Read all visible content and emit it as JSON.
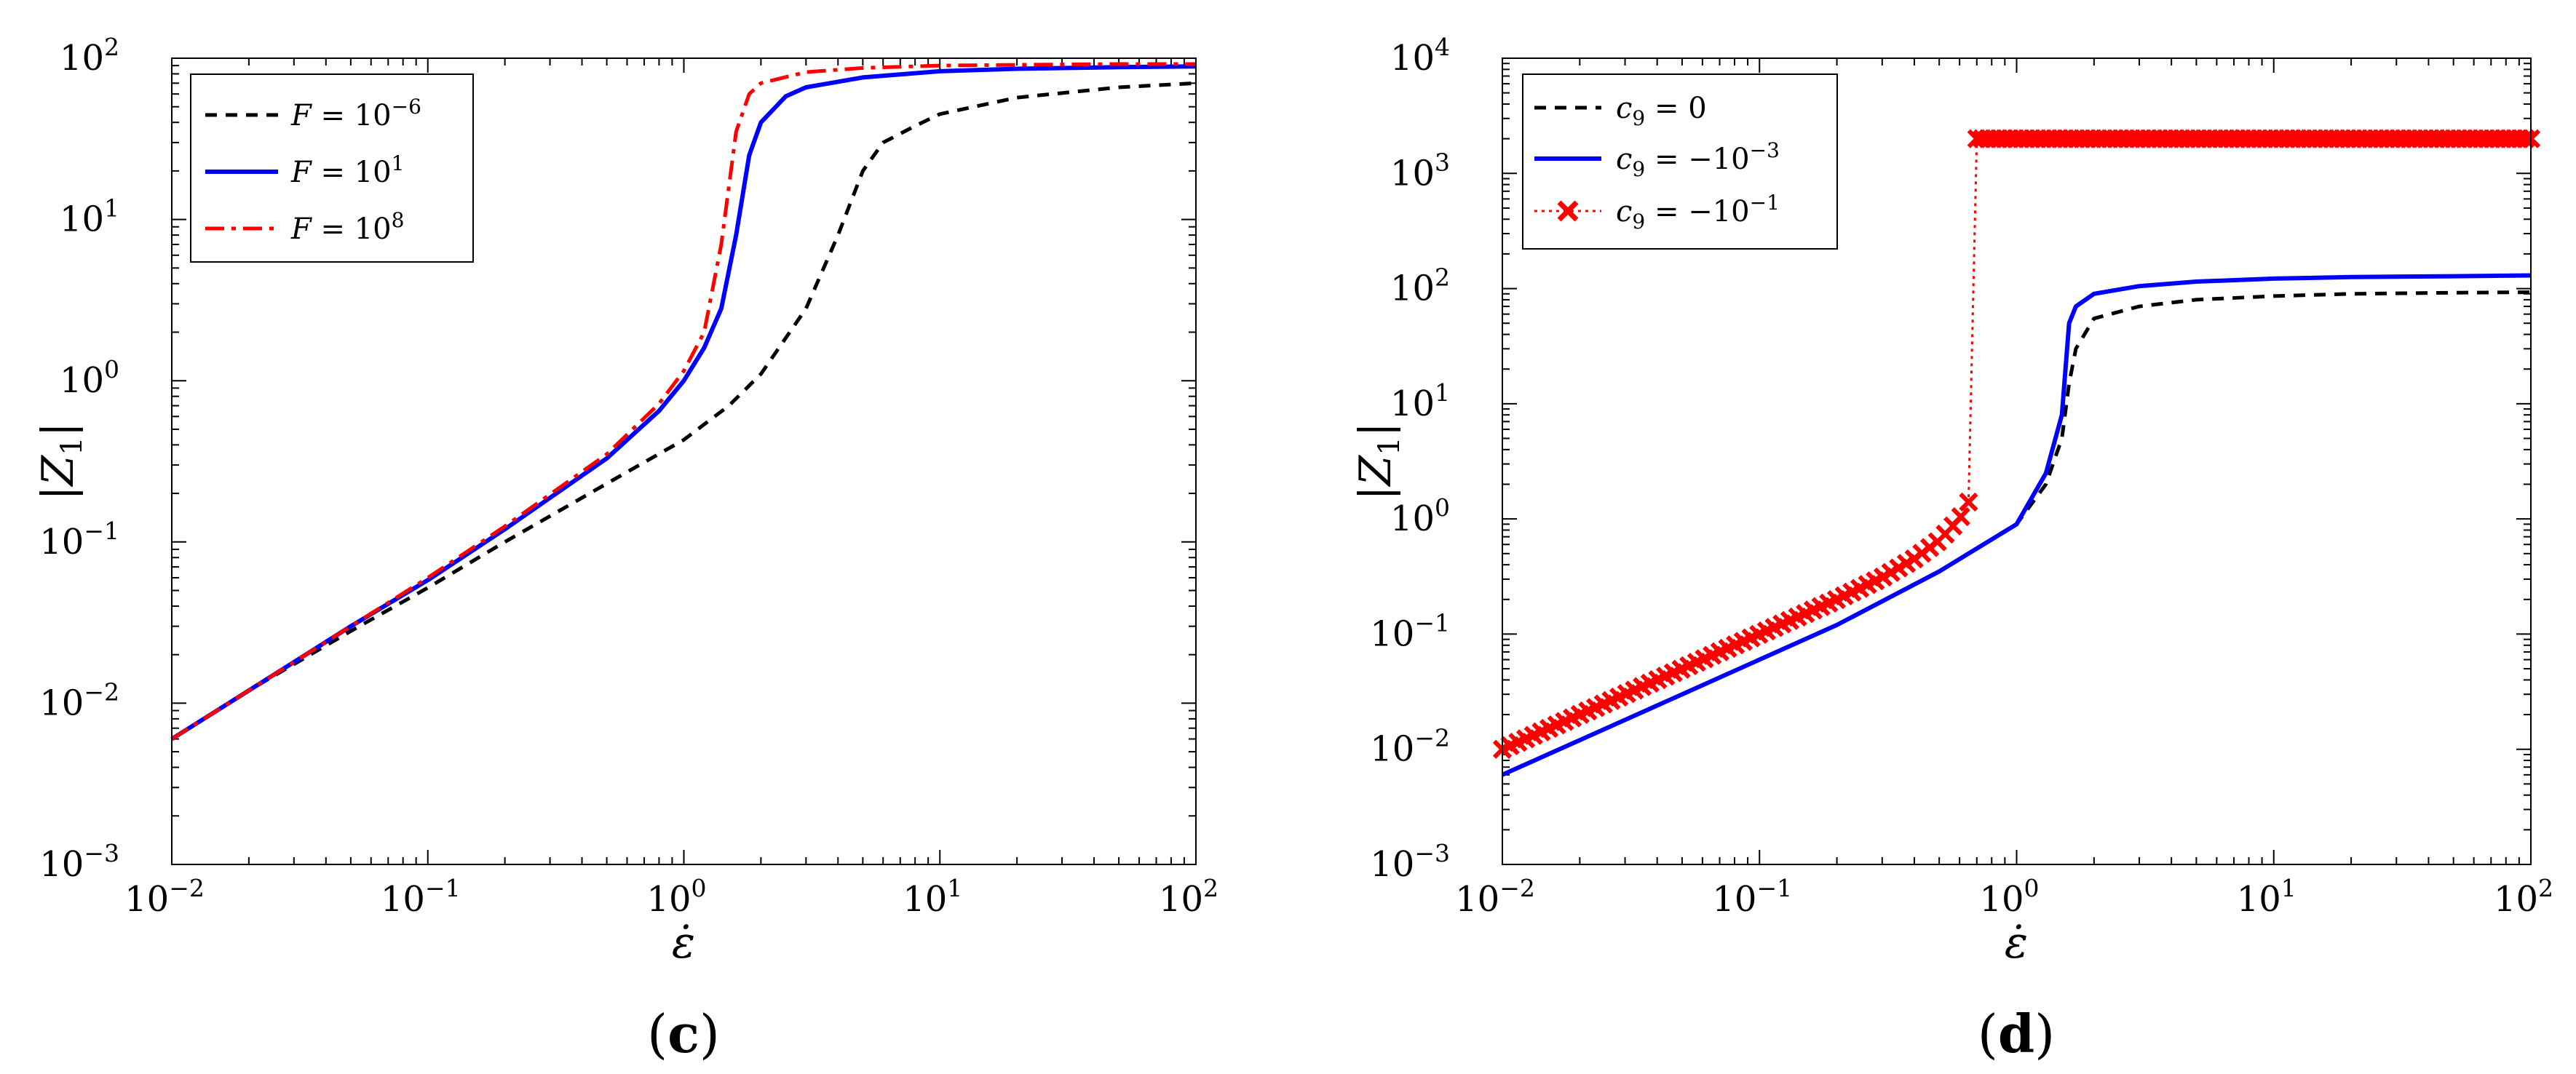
{
  "chart_data": [
    {
      "id": "c",
      "type": "line",
      "caption_letter": "c",
      "xlabel": "ε̇",
      "ylabel": "|Z1|",
      "xscale": "log",
      "yscale": "log",
      "xlim": [
        0.01,
        100
      ],
      "ylim": [
        0.001,
        100
      ],
      "xticks": [
        {
          "base": "10",
          "exp": "−2"
        },
        {
          "base": "10",
          "exp": "−1"
        },
        {
          "base": "10",
          "exp": "0"
        },
        {
          "base": "10",
          "exp": "1"
        },
        {
          "base": "10",
          "exp": "2"
        }
      ],
      "yticks": [
        {
          "base": "10",
          "exp": "−3"
        },
        {
          "base": "10",
          "exp": "−2"
        },
        {
          "base": "10",
          "exp": "−1"
        },
        {
          "base": "10",
          "exp": "0"
        },
        {
          "base": "10",
          "exp": "1"
        },
        {
          "base": "10",
          "exp": "2"
        }
      ],
      "legend_position": "top-left",
      "series": [
        {
          "name": "F = 10^-6",
          "legend_lhs": "F",
          "legend_base": "10",
          "legend_exp": "−6",
          "color": "#000000",
          "style": "dashed",
          "x": [
            0.01,
            0.02,
            0.05,
            0.1,
            0.2,
            0.5,
            1.0,
            1.5,
            2.0,
            3.0,
            4.0,
            5.0,
            6.0,
            8.0,
            10,
            20,
            50,
            100
          ],
          "y": [
            0.006,
            0.012,
            0.028,
            0.052,
            0.1,
            0.23,
            0.43,
            0.7,
            1.1,
            2.8,
            8.0,
            20,
            30,
            38,
            45,
            57,
            66,
            70
          ]
        },
        {
          "name": "F = 10^1",
          "legend_lhs": "F",
          "legend_base": "10",
          "legend_exp": "1",
          "color": "#0000ff",
          "style": "solid",
          "x": [
            0.01,
            0.02,
            0.05,
            0.1,
            0.2,
            0.5,
            0.8,
            1.0,
            1.2,
            1.4,
            1.6,
            1.8,
            2.0,
            2.5,
            3.0,
            5.0,
            10,
            20,
            50,
            100
          ],
          "y": [
            0.006,
            0.012,
            0.03,
            0.058,
            0.12,
            0.33,
            0.65,
            1.0,
            1.6,
            2.8,
            8.0,
            25,
            40,
            58,
            66,
            76,
            83,
            86,
            88,
            89
          ]
        },
        {
          "name": "F = 10^8",
          "legend_lhs": "F",
          "legend_base": "10",
          "legend_exp": "8",
          "color": "#ff0000",
          "style": "dashdot",
          "x": [
            0.01,
            0.02,
            0.05,
            0.1,
            0.2,
            0.5,
            0.8,
            1.0,
            1.2,
            1.4,
            1.6,
            1.8,
            2.0,
            3.0,
            5.0,
            10,
            20,
            50,
            100
          ],
          "y": [
            0.006,
            0.012,
            0.03,
            0.06,
            0.125,
            0.35,
            0.72,
            1.15,
            2.0,
            7.0,
            35,
            60,
            70,
            82,
            87,
            90,
            91,
            92,
            92
          ]
        }
      ]
    },
    {
      "id": "d",
      "type": "line",
      "caption_letter": "d",
      "xlabel": "ε̇",
      "ylabel": "|Z1|",
      "xscale": "log",
      "yscale": "log",
      "xlim": [
        0.01,
        100
      ],
      "ylim": [
        0.001,
        10000
      ],
      "xticks": [
        {
          "base": "10",
          "exp": "−2"
        },
        {
          "base": "10",
          "exp": "−1"
        },
        {
          "base": "10",
          "exp": "0"
        },
        {
          "base": "10",
          "exp": "1"
        },
        {
          "base": "10",
          "exp": "2"
        }
      ],
      "yticks": [
        {
          "base": "10",
          "exp": "−3"
        },
        {
          "base": "10",
          "exp": "−2"
        },
        {
          "base": "10",
          "exp": "−1"
        },
        {
          "base": "10",
          "exp": "0"
        },
        {
          "base": "10",
          "exp": "1"
        },
        {
          "base": "10",
          "exp": "2"
        },
        {
          "base": "10",
          "exp": "3"
        },
        {
          "base": "10",
          "exp": "4"
        }
      ],
      "legend_position": "top-left",
      "series": [
        {
          "name": "c9 = 0",
          "legend_lhs": "c",
          "legend_sub": "9",
          "legend_rhs": "0",
          "color": "#000000",
          "style": "dashed",
          "x": [
            0.01,
            0.02,
            0.05,
            0.1,
            0.2,
            0.5,
            1.0,
            1.3,
            1.5,
            1.6,
            1.7,
            2.0,
            3.0,
            5.0,
            10,
            20,
            50,
            100
          ],
          "y": [
            0.006,
            0.012,
            0.03,
            0.06,
            0.12,
            0.35,
            0.9,
            2.0,
            5.0,
            15,
            30,
            55,
            70,
            80,
            86,
            90,
            92,
            93
          ]
        },
        {
          "name": "c9 = -10^-3",
          "legend_lhs": "c",
          "legend_sub": "9",
          "legend_rhs": "−10",
          "legend_exp": "−3",
          "color": "#0000ff",
          "style": "solid",
          "x": [
            0.01,
            0.02,
            0.05,
            0.1,
            0.2,
            0.5,
            1.0,
            1.3,
            1.5,
            1.6,
            1.7,
            2.0,
            3.0,
            5.0,
            10,
            20,
            50,
            100
          ],
          "y": [
            0.006,
            0.012,
            0.03,
            0.06,
            0.12,
            0.35,
            0.9,
            2.5,
            8.0,
            50,
            70,
            90,
            105,
            115,
            122,
            126,
            128,
            130
          ]
        },
        {
          "name": "c9 = -10^-1",
          "legend_lhs": "c",
          "legend_sub": "9",
          "legend_rhs": "−10",
          "legend_exp": "−1",
          "color": "#ff0000",
          "style": "dotted-cross",
          "x": [
            0.01,
            0.02,
            0.05,
            0.1,
            0.2,
            0.3,
            0.4,
            0.5,
            0.6,
            0.65,
            0.7,
            1.0,
            10,
            100
          ],
          "y": [
            0.01,
            0.02,
            0.05,
            0.1,
            0.2,
            0.31,
            0.45,
            0.65,
            1.0,
            1.4,
            2000,
            2000,
            2000,
            2000
          ]
        }
      ]
    }
  ]
}
